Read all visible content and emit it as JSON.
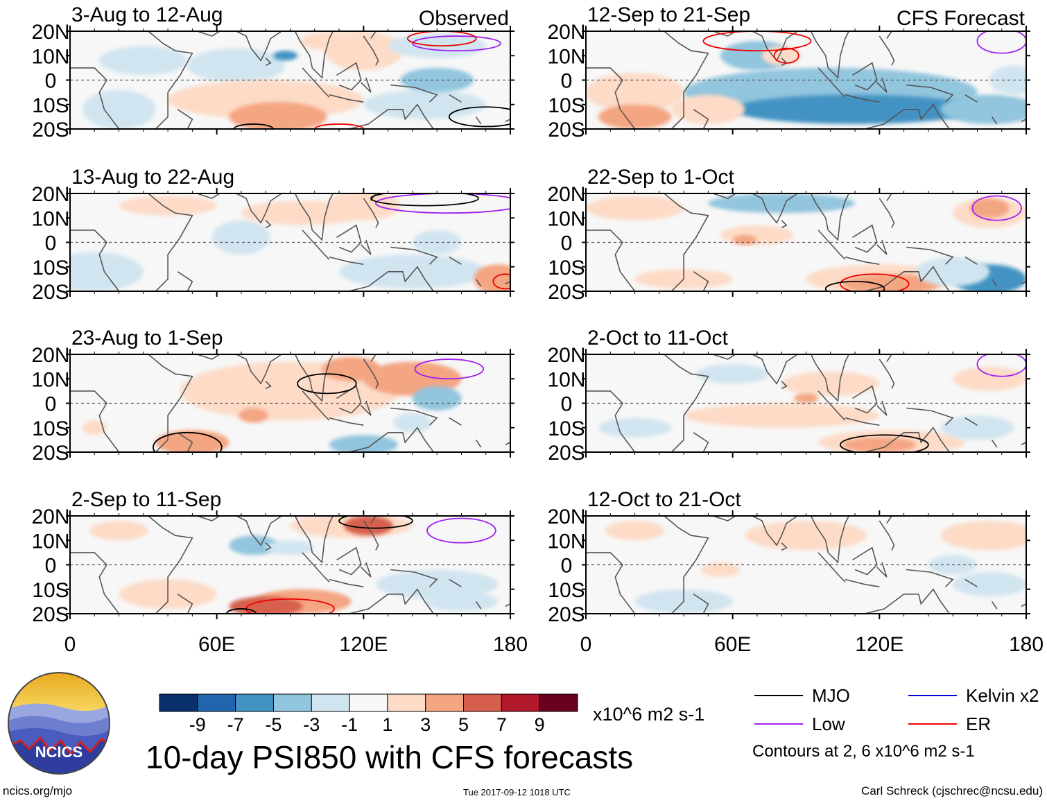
{
  "chart_data": {
    "type": "heatmap",
    "title": "10-day PSI850 with CFS forecasts",
    "variable": "PSI850 anomaly",
    "units": "x10^6 m2 s-1",
    "contour_note": "Contours at 2, 6 x10^6 m2 s-1",
    "x_axis": {
      "range": [
        0,
        180
      ],
      "ticks": [
        0,
        60,
        120,
        180
      ],
      "tick_labels": [
        "0",
        "60E",
        "120E",
        "180"
      ]
    },
    "y_axis": {
      "range": [
        -20,
        20
      ],
      "ticks": [
        20,
        10,
        0,
        -10,
        -20
      ],
      "tick_labels": [
        "20N",
        "10N",
        "0",
        "10S",
        "20S"
      ]
    },
    "colorbar": {
      "labels": [
        "-9",
        "-7",
        "-5",
        "-3",
        "-1",
        "1",
        "3",
        "5",
        "7",
        "9"
      ],
      "colors": [
        "#08306b",
        "#2166ac",
        "#4393c3",
        "#92c5de",
        "#d1e5f0",
        "#f7f7f7",
        "#fddbc7",
        "#f4a582",
        "#d6604d",
        "#b2182b",
        "#67001f"
      ]
    },
    "legend": [
      {
        "label": "MJO",
        "color": "#000000"
      },
      {
        "label": "Kelvin x2",
        "color": "#0000dd"
      },
      {
        "label": "Low",
        "color": "#a020f0"
      },
      {
        "label": "ER",
        "color": "#ee0000"
      }
    ],
    "columns": [
      {
        "header": "Observed",
        "panels": [
          "3-Aug to 12-Aug",
          "13-Aug to 22-Aug",
          "23-Aug to 1-Sep",
          "2-Sep to 11-Sep"
        ]
      },
      {
        "header": "CFS Forecast",
        "panels": [
          "12-Sep to 21-Sep",
          "22-Sep to 1-Oct",
          "2-Oct to 11-Oct",
          "12-Oct to 21-Oct"
        ]
      }
    ]
  },
  "logo": {
    "text": "NCICS"
  },
  "footer": {
    "left": "ncics.org/mjo",
    "center": "Tue 2017-09-12 1018 UTC",
    "right": "Carl Schreck (cjschrec@ncsu.edu)"
  }
}
